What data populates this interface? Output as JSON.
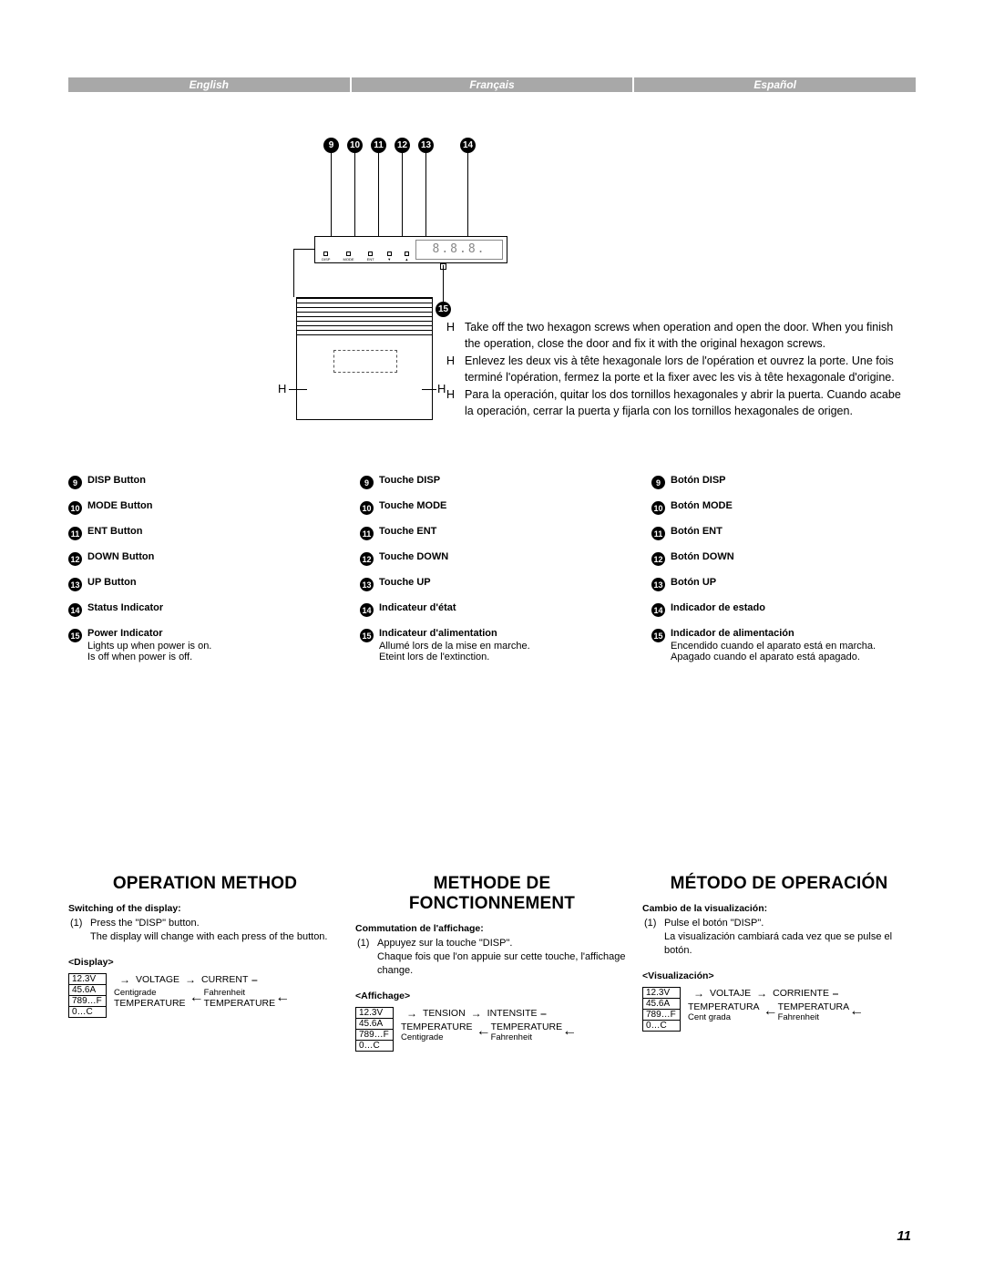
{
  "langs": {
    "en": "English",
    "fr": "Français",
    "es": "Español"
  },
  "callout_nums": [
    "9",
    "10",
    "11",
    "12",
    "13",
    "14",
    "15"
  ],
  "panel_display": "8.8.8.",
  "panel_buttons": [
    "DISP",
    "MODE",
    "ENT",
    "▼",
    "▲"
  ],
  "h_letter": "H",
  "h_texts": {
    "en": "Take off the two hexagon screws when operation and open the door. When you finish the operation, close the door and fix it with the original hexagon screws.",
    "fr": "Enlevez les deux vis à tête hexagonale lors de l'opération et ouvrez la porte. Une fois terminé l'opération, fermez la porte et la fixer avec les vis à tête hexagonale d'origine.",
    "es": "Para la operación, quitar los dos tornillos hexagonales y abrir la puerta. Cuando acabe la operación, cerrar la puerta y fijarla con los tornillos hexagonales de origen."
  },
  "legend": {
    "en": [
      {
        "n": "9",
        "t": "DISP Button"
      },
      {
        "n": "10",
        "t": "MODE Button"
      },
      {
        "n": "11",
        "t": "ENT Button"
      },
      {
        "n": "12",
        "t": "DOWN Button"
      },
      {
        "n": "13",
        "t": "UP Button"
      },
      {
        "n": "14",
        "t": "Status Indicator"
      },
      {
        "n": "15",
        "t": "Power Indicator",
        "d": "Lights up when power is on.\nIs off when power is off."
      }
    ],
    "fr": [
      {
        "n": "9",
        "t": "Touche DISP"
      },
      {
        "n": "10",
        "t": "Touche MODE"
      },
      {
        "n": "11",
        "t": "Touche ENT"
      },
      {
        "n": "12",
        "t": "Touche DOWN"
      },
      {
        "n": "13",
        "t": "Touche UP"
      },
      {
        "n": "14",
        "t": "Indicateur d'état"
      },
      {
        "n": "15",
        "t": "Indicateur d'alimentation",
        "d": "Allumé lors de la mise en marche.\nEteint lors de l'extinction."
      }
    ],
    "es": [
      {
        "n": "9",
        "t": "Botón DISP"
      },
      {
        "n": "10",
        "t": "Botón MODE"
      },
      {
        "n": "11",
        "t": "Botón ENT"
      },
      {
        "n": "12",
        "t": "Botón DOWN"
      },
      {
        "n": "13",
        "t": "Botón UP"
      },
      {
        "n": "14",
        "t": "Indicador de estado"
      },
      {
        "n": "15",
        "t": "Indicador de alimentación",
        "d": "Encendido cuando el aparato está en marcha.\nApagado cuando el aparato está apagado."
      }
    ]
  },
  "op": {
    "en": {
      "title": "OPERATION METHOD",
      "sub": "Switching of the display:",
      "step_n": "(1)",
      "step": "Press the \"DISP\" button.\nThe display will change with each press of the button.",
      "disp": "<Display>",
      "a": "VOLTAGE",
      "b": "CURRENT",
      "c": "TEMPERATURE",
      "cs": "Centigrade",
      "d": "TEMPERATURE",
      "ds": "Fahrenheit"
    },
    "fr": {
      "title": "METHODE DE FONCTIONNEMENT",
      "sub": "Commutation de l'affichage:",
      "step_n": "(1)",
      "step": "Appuyez sur la touche \"DISP\".\nChaque fois que l'on appuie sur cette touche, l'affichage change.",
      "disp": "<Affichage>",
      "a": "TENSION",
      "b": "INTENSITE",
      "c": "TEMPERATURE",
      "cs": "Centigrade",
      "d": "TEMPERATURE",
      "ds": "Fahrenheit"
    },
    "es": {
      "title": "MÉTODO DE OPERACIÓN",
      "sub": "Cambio de la visualización:",
      "step_n": "(1)",
      "step": "Pulse el botón \"DISP\".\nLa visualización cambiará cada vez que se pulse el botón.",
      "disp": "<Visualización>",
      "a": "VOLTAJE",
      "b": "CORRIENTE",
      "c": "TEMPERATURA",
      "cs": "Cent grada",
      "d": "TEMPERATURA",
      "ds": "Fahrenheit"
    }
  },
  "flow_boxes": [
    "12.3V",
    "45.6A",
    "789…F",
    "0…C"
  ],
  "page": "11"
}
